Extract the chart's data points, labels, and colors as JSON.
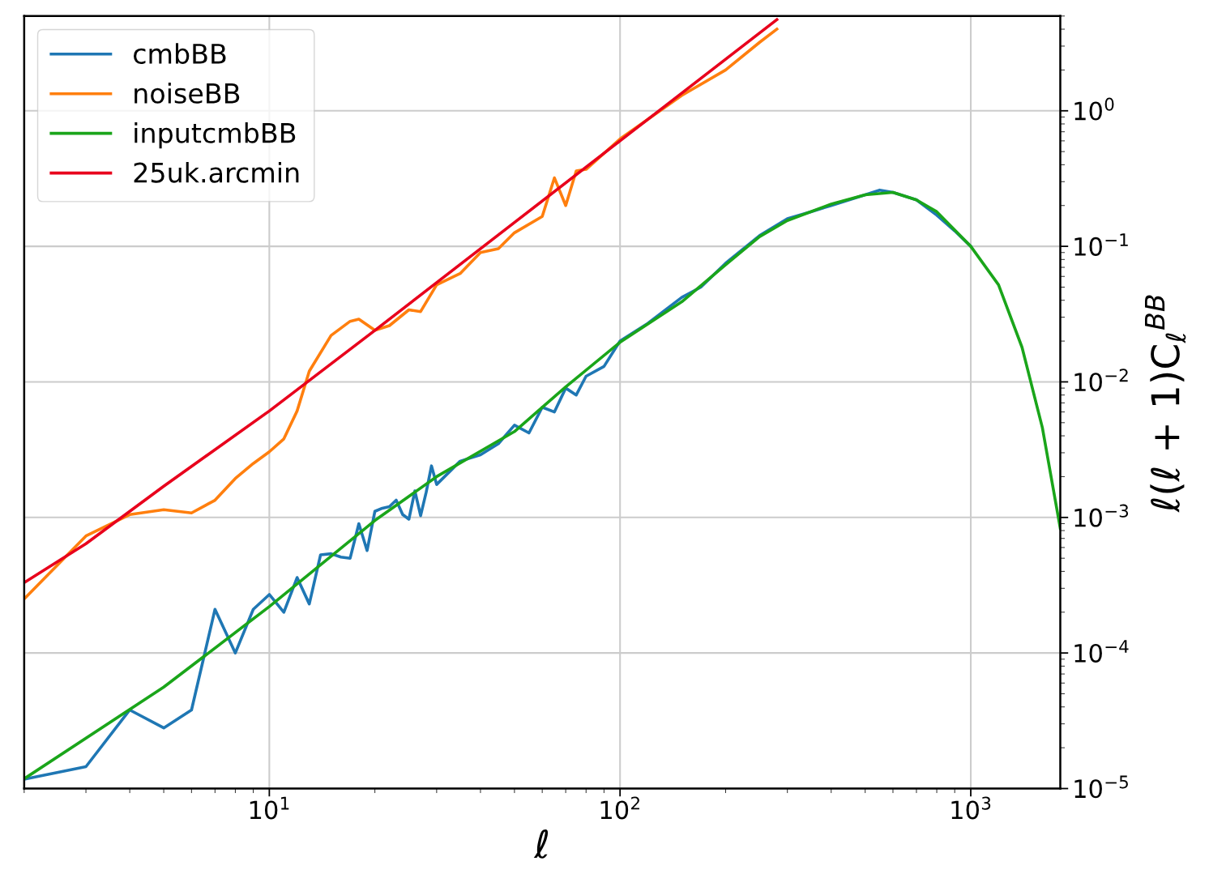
{
  "chart_data": {
    "type": "line",
    "xlabel": "ℓ",
    "ylabel": "ℓ(ℓ + 1)C$_{ℓ}$$^{BB}$",
    "log": "xy",
    "grid": true,
    "legend": "top left",
    "xlim": [
      2,
      1800
    ],
    "ylim": [
      1e-05,
      5
    ],
    "xticks": [
      {
        "value": 10,
        "label": "10$^{1}$"
      },
      {
        "value": 100,
        "label": "10$^{2}$"
      },
      {
        "value": 1000,
        "label": "10$^{3}$"
      }
    ],
    "yticks": [
      {
        "value": 1e-05,
        "label": "10$^{−5}$"
      },
      {
        "value": 0.0001,
        "label": "10$^{−4}$"
      },
      {
        "value": 0.001,
        "label": "10$^{−3}$"
      },
      {
        "value": 0.01,
        "label": "10$^{−2}$"
      },
      {
        "value": 0.1,
        "label": "10$^{−1}$"
      },
      {
        "value": 1,
        "label": "10$^{0}$"
      }
    ],
    "series": [
      {
        "name": "cmbBB",
        "color": "#1f77b4",
        "x": [
          2,
          3,
          4,
          5,
          6,
          7,
          8,
          9,
          10,
          11,
          12,
          13,
          14,
          15,
          16,
          17,
          18,
          19,
          20,
          21,
          22,
          23,
          24,
          25,
          26,
          27,
          28,
          29,
          30,
          35,
          40,
          45,
          50,
          55,
          60,
          65,
          70,
          75,
          80,
          90,
          100,
          120,
          150,
          170,
          200,
          250,
          300,
          350,
          400,
          450,
          500,
          550,
          600,
          700,
          800,
          900,
          1000
        ],
        "values": [
          1.17e-05,
          1.45e-05,
          3.8e-05,
          2.8e-05,
          3.8e-05,
          0.00021,
          0.0001,
          0.00021,
          0.00027,
          0.0002,
          0.00036,
          0.00023,
          0.00053,
          0.00054,
          0.00051,
          0.0005,
          0.0009,
          0.00057,
          0.00111,
          0.00117,
          0.0012,
          0.00134,
          0.00105,
          0.00097,
          0.00157,
          0.00103,
          0.00153,
          0.0024,
          0.00175,
          0.0026,
          0.0029,
          0.0035,
          0.0048,
          0.0042,
          0.0065,
          0.006,
          0.009,
          0.008,
          0.011,
          0.013,
          0.02,
          0.027,
          0.042,
          0.05,
          0.075,
          0.12,
          0.16,
          0.18,
          0.2,
          0.22,
          0.24,
          0.26,
          0.25,
          0.22,
          0.17,
          0.13,
          0.1
        ]
      },
      {
        "name": "noiseBB",
        "color": "#ff7f0e",
        "x": [
          2,
          3,
          4,
          5,
          6,
          7,
          8,
          9,
          10,
          11,
          12,
          13,
          15,
          17,
          18,
          20,
          22,
          25,
          27,
          30,
          35,
          40,
          45,
          50,
          60,
          65,
          70,
          75,
          80,
          100,
          130,
          150,
          200,
          250,
          280
        ],
        "values": [
          0.00025,
          0.00073,
          0.00105,
          0.00114,
          0.00108,
          0.00134,
          0.00194,
          0.0025,
          0.00305,
          0.0038,
          0.0061,
          0.012,
          0.022,
          0.028,
          0.029,
          0.024,
          0.026,
          0.034,
          0.033,
          0.052,
          0.063,
          0.09,
          0.096,
          0.126,
          0.166,
          0.32,
          0.2,
          0.36,
          0.37,
          0.62,
          1.0,
          1.3,
          2.0,
          3.2,
          4.0
        ]
      },
      {
        "name": "inputcmbBB",
        "color": "#1aa51a",
        "x": [
          2,
          5,
          10,
          20,
          30,
          50,
          70,
          100,
          150,
          200,
          250,
          300,
          400,
          500,
          600,
          700,
          800,
          1000,
          1200,
          1400,
          1600,
          1800
        ],
        "values": [
          1.18e-05,
          5.6e-05,
          0.00022,
          0.00095,
          0.002,
          0.0043,
          0.0092,
          0.0196,
          0.039,
          0.073,
          0.118,
          0.155,
          0.205,
          0.24,
          0.25,
          0.22,
          0.18,
          0.1,
          0.052,
          0.018,
          0.0046,
          0.00083
        ]
      },
      {
        "name": "25uk.arcmin",
        "color": "#e8001c",
        "x": [
          2,
          3,
          5,
          10,
          20,
          50,
          100,
          200,
          280
        ],
        "values": [
          0.00033,
          0.00064,
          0.0017,
          0.0061,
          0.024,
          0.15,
          0.6,
          2.4,
          4.7
        ]
      }
    ]
  }
}
